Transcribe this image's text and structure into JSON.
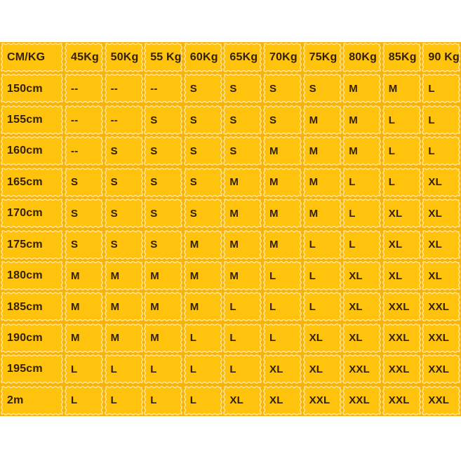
{
  "page": {
    "background": "#ffffff"
  },
  "table": {
    "name": "size-chart",
    "colors": {
      "table_bg": "#f7b309",
      "cell_bg": "#ffc30d",
      "wave_border": "#ffe9a6",
      "text": "#332105"
    },
    "columns": [
      "CM/KG",
      "45Kg",
      "50Kg",
      "55 Kg",
      "60Kg",
      "65Kg",
      "70Kg",
      "75Kg",
      "80Kg",
      "85Kg",
      "90 Kg"
    ],
    "rows": [
      {
        "height": "150cm",
        "sizes": [
          "--",
          "--",
          "--",
          "S",
          "S",
          "S",
          "S",
          "M",
          "M",
          "L"
        ]
      },
      {
        "height": "155cm",
        "sizes": [
          "--",
          "--",
          "S",
          "S",
          "S",
          "S",
          "M",
          "M",
          "L",
          "L"
        ]
      },
      {
        "height": "160cm",
        "sizes": [
          "--",
          "S",
          "S",
          "S",
          "S",
          "M",
          "M",
          "M",
          "L",
          "L"
        ]
      },
      {
        "height": "165cm",
        "sizes": [
          "S",
          "S",
          "S",
          "S",
          "M",
          "M",
          "M",
          "L",
          "L",
          "XL"
        ]
      },
      {
        "height": "170cm",
        "sizes": [
          "S",
          "S",
          "S",
          "S",
          "M",
          "M",
          "M",
          "L",
          "XL",
          "XL"
        ]
      },
      {
        "height": "175cm",
        "sizes": [
          "S",
          "S",
          "S",
          "M",
          "M",
          "M",
          "L",
          "L",
          "XL",
          "XL"
        ]
      },
      {
        "height": "180cm",
        "sizes": [
          "M",
          "M",
          "M",
          "M",
          "M",
          "L",
          "L",
          "XL",
          "XL",
          "XL"
        ]
      },
      {
        "height": "185cm",
        "sizes": [
          "M",
          "M",
          "M",
          "M",
          "L",
          "L",
          "L",
          "XL",
          "XXL",
          "XXL"
        ]
      },
      {
        "height": "190cm",
        "sizes": [
          "M",
          "M",
          "M",
          "L",
          "L",
          "L",
          "XL",
          "XL",
          "XXL",
          "XXL"
        ]
      },
      {
        "height": "195cm",
        "sizes": [
          "L",
          "L",
          "L",
          "L",
          "L",
          "XL",
          "XL",
          "XXL",
          "XXL",
          "XXL"
        ]
      },
      {
        "height": "2m",
        "sizes": [
          "L",
          "L",
          "L",
          "L",
          "XL",
          "XL",
          "XXL",
          "XXL",
          "XXL",
          "XXL"
        ]
      }
    ]
  },
  "chart_data": {
    "type": "table",
    "title": "Size chart by height (cm) and weight (kg)",
    "columns": [
      "CM/KG",
      "45Kg",
      "50Kg",
      "55 Kg",
      "60Kg",
      "65Kg",
      "70Kg",
      "75Kg",
      "80Kg",
      "85Kg",
      "90 Kg"
    ],
    "rows": [
      [
        "150cm",
        "--",
        "--",
        "--",
        "S",
        "S",
        "S",
        "S",
        "M",
        "M",
        "L"
      ],
      [
        "155cm",
        "--",
        "--",
        "S",
        "S",
        "S",
        "S",
        "M",
        "M",
        "L",
        "L"
      ],
      [
        "160cm",
        "--",
        "S",
        "S",
        "S",
        "S",
        "M",
        "M",
        "M",
        "L",
        "L"
      ],
      [
        "165cm",
        "S",
        "S",
        "S",
        "S",
        "M",
        "M",
        "M",
        "L",
        "L",
        "XL"
      ],
      [
        "170cm",
        "S",
        "S",
        "S",
        "S",
        "M",
        "M",
        "M",
        "L",
        "XL",
        "XL"
      ],
      [
        "175cm",
        "S",
        "S",
        "S",
        "M",
        "M",
        "M",
        "L",
        "L",
        "XL",
        "XL"
      ],
      [
        "180cm",
        "M",
        "M",
        "M",
        "M",
        "M",
        "L",
        "L",
        "XL",
        "XL",
        "XL"
      ],
      [
        "185cm",
        "M",
        "M",
        "M",
        "M",
        "L",
        "L",
        "L",
        "XL",
        "XXL",
        "XXL"
      ],
      [
        "190cm",
        "M",
        "M",
        "M",
        "L",
        "L",
        "L",
        "XL",
        "XL",
        "XXL",
        "XXL"
      ],
      [
        "195cm",
        "L",
        "L",
        "L",
        "L",
        "L",
        "XL",
        "XL",
        "XXL",
        "XXL",
        "XXL"
      ],
      [
        "2m",
        "L",
        "L",
        "L",
        "L",
        "XL",
        "XL",
        "XXL",
        "XXL",
        "XXL",
        "XXL"
      ]
    ]
  }
}
